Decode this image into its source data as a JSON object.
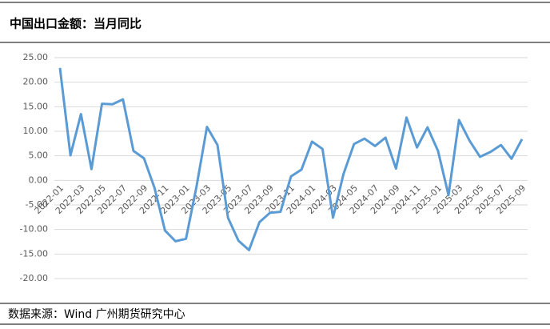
{
  "header": {
    "title": "中国出口金额：当月同比"
  },
  "chart_data": {
    "type": "line",
    "categories": [
      "2022-01",
      null,
      "2022-03",
      null,
      "2022-05",
      null,
      "2022-07",
      null,
      "2022-09",
      null,
      "2022-11",
      null,
      "2023-01",
      null,
      "2023-03",
      null,
      "2023-05",
      null,
      "2023-07",
      null,
      "2023-09",
      null,
      "2023-11",
      null,
      "2024-01",
      null,
      "2024-03",
      null,
      "2024-05",
      null,
      "2024-07",
      null,
      "2024-09",
      null,
      "2024-11",
      null,
      "2025-01",
      null,
      "2025-03",
      null,
      "2025-05",
      null,
      "2025-07",
      null,
      "2025-09"
    ],
    "series": [
      {
        "color": "#5b9bd5",
        "values": [
          22.9,
          5.1,
          13.5,
          2.3,
          15.6,
          15.5,
          16.5,
          6.0,
          4.5,
          -1.5,
          -10.2,
          -12.4,
          -11.9,
          -1.3,
          10.9,
          7.2,
          -7.6,
          -12.3,
          -14.2,
          -8.5,
          -6.6,
          -6.4,
          0.8,
          2.2,
          7.9,
          6.4,
          -7.6,
          1.3,
          7.4,
          8.5,
          7.0,
          8.7,
          2.4,
          12.8,
          6.7,
          10.8,
          6.0,
          -3.0,
          12.3,
          8.1,
          4.8,
          5.8,
          7.2,
          4.4,
          8.4
        ]
      }
    ],
    "ylim": [
      -20,
      25
    ],
    "yticks": [
      {
        "value": -20,
        "label": "-20.00"
      },
      {
        "value": -15,
        "label": "-15.00"
      },
      {
        "value": -10,
        "label": "-10.00"
      },
      {
        "value": -5,
        "label": "-5.00"
      },
      {
        "value": 0,
        "label": "0.00"
      },
      {
        "value": 5,
        "label": "5.00"
      },
      {
        "value": 10,
        "label": "10.00"
      },
      {
        "value": 15,
        "label": "15.00"
      },
      {
        "value": 20,
        "label": "20.00"
      },
      {
        "value": 25,
        "label": "25.00"
      }
    ],
    "grid": true
  },
  "footer": {
    "source": "数据来源：Wind 广州期货研究中心"
  }
}
